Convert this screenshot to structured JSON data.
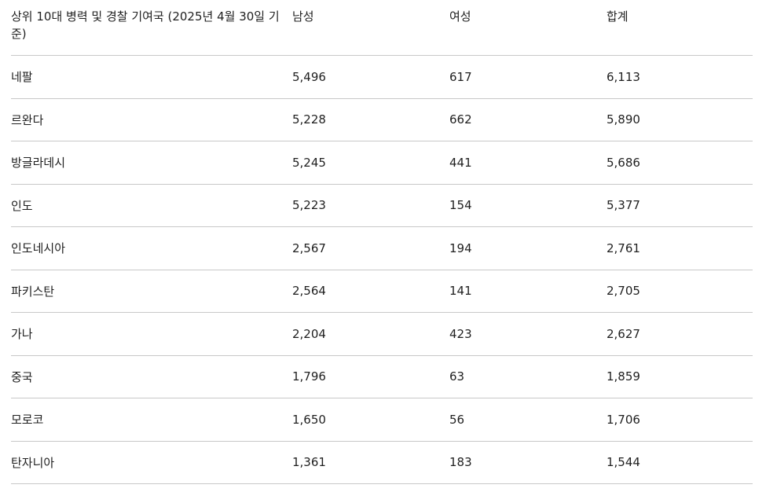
{
  "table": {
    "header": [
      "상위 10대 병력 및 경찰 기여국 (2025년 4월 30일 기준)",
      "남성",
      "여성",
      "합계"
    ],
    "rows": [
      [
        "네팔",
        "5,496",
        "617",
        "6,113"
      ],
      [
        "르완다",
        "5,228",
        "662",
        "5,890"
      ],
      [
        "방글라데시",
        "5,245",
        "441",
        "5,686"
      ],
      [
        "인도",
        "5,223",
        "154",
        "5,377"
      ],
      [
        "인도네시아",
        "2,567",
        "194",
        "2,761"
      ],
      [
        "파키스탄",
        "2,564",
        "141",
        "2,705"
      ],
      [
        "가나",
        "2,204",
        "423",
        "2,627"
      ],
      [
        "중국",
        "1,796",
        "63",
        "1,859"
      ],
      [
        "모로코",
        "1,650",
        "56",
        "1,706"
      ],
      [
        "탄자니아",
        "1,361",
        "183",
        "1,544"
      ]
    ]
  }
}
